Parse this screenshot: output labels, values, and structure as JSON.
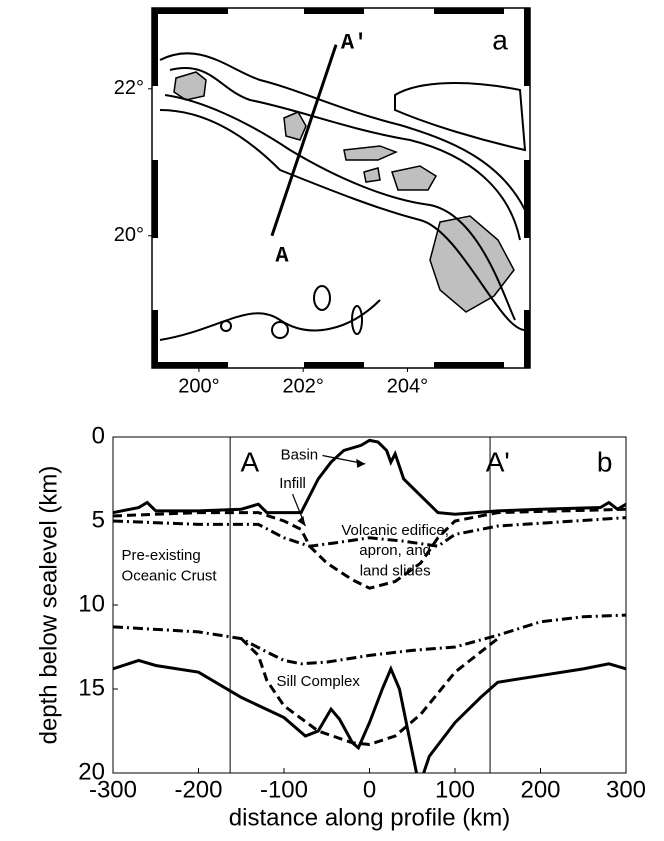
{
  "chart_data": [
    {
      "type": "map",
      "xlim": [
        199.1,
        206.35
      ],
      "ylim": [
        18.2,
        23.1
      ],
      "xticks": [
        {
          "value": 200,
          "label": "200°"
        },
        {
          "value": 202,
          "label": "202°"
        },
        {
          "value": 204,
          "label": "204°"
        }
      ],
      "yticks": [
        {
          "value": 20,
          "label": "20°"
        },
        {
          "value": 22,
          "label": "22°"
        }
      ],
      "profile": {
        "x": [
          201.4,
          202.63
        ],
        "y": [
          20.0,
          22.6
        ]
      },
      "annotations": [
        "A",
        "A'",
        "a"
      ]
    },
    {
      "type": "line",
      "xlabel": "distance along profile (km)",
      "ylabel": "depth below sealevel (km)",
      "xlim": [
        -300,
        300
      ],
      "ylim": [
        20,
        0
      ],
      "xticks": [
        -300,
        -200,
        -100,
        0,
        100,
        200,
        300
      ],
      "yticks": [
        0,
        5,
        10,
        15,
        20
      ],
      "vlines": [
        -163,
        141
      ],
      "annotations": [
        "A",
        "A'",
        "b",
        "Basin",
        "Infill",
        "Volcanic edifice,",
        "apron, and",
        "land slides",
        "Pre-existing",
        "Oceanic Crust",
        "Sill Complex"
      ],
      "series": [
        {
          "style": "solid",
          "color": "#000000",
          "x": [
            -300,
            -270,
            -260,
            -250,
            -200,
            -150,
            -130,
            -120,
            -80,
            -60,
            -45,
            -30,
            -10,
            0,
            10,
            20,
            25,
            30,
            40,
            60,
            70,
            80,
            100,
            150,
            200,
            270,
            280,
            290,
            300
          ],
          "values": [
            4.5,
            4.2,
            3.9,
            4.4,
            4.4,
            4.3,
            4.0,
            4.5,
            4.5,
            2.5,
            1.5,
            0.8,
            0.5,
            0.2,
            0.3,
            0.8,
            1.5,
            1.0,
            2.5,
            3.5,
            4.0,
            4.5,
            4.6,
            4.4,
            4.3,
            4.2,
            3.9,
            4.3,
            4.0
          ]
        },
        {
          "style": "dashed",
          "color": "#000000",
          "x": [
            -300,
            -200,
            -130,
            -100,
            -80,
            -70,
            -50,
            -20,
            0,
            30,
            60,
            80,
            100,
            150,
            300
          ],
          "values": [
            4.7,
            4.5,
            4.5,
            5.0,
            5.5,
            6.5,
            7.5,
            8.5,
            9.0,
            8.6,
            7.5,
            6.0,
            5.0,
            4.5,
            4.3
          ]
        },
        {
          "style": "dashdot",
          "color": "#000000",
          "x": [
            -300,
            -200,
            -130,
            -100,
            -70,
            -40,
            0,
            40,
            80,
            100,
            150,
            300
          ],
          "values": [
            5.0,
            5.2,
            5.2,
            6.0,
            6.5,
            6.3,
            6.0,
            6.2,
            6.5,
            5.8,
            5.3,
            4.8
          ]
        },
        {
          "style": "dashdot",
          "color": "#000000",
          "x": [
            -300,
            -200,
            -150,
            -120,
            -100,
            -80,
            -50,
            0,
            50,
            100,
            150,
            200,
            250,
            300
          ],
          "values": [
            11.3,
            11.6,
            12.0,
            12.8,
            13.3,
            13.5,
            13.4,
            13.0,
            12.7,
            12.5,
            11.8,
            11.0,
            10.7,
            10.6
          ]
        },
        {
          "style": "dashed",
          "color": "#000000",
          "x": [
            -150,
            -130,
            -120,
            -100,
            -60,
            -20,
            0,
            30,
            60,
            100,
            150
          ],
          "values": [
            12.0,
            13.0,
            14.5,
            16.0,
            17.5,
            18.2,
            18.3,
            17.8,
            16.5,
            14.0,
            12.0
          ]
        },
        {
          "style": "solid",
          "color": "#000000",
          "x": [
            -300,
            -270,
            -250,
            -200,
            -150,
            -100,
            -75,
            -60,
            -45,
            -35,
            -20,
            -13,
            0,
            15,
            25,
            35,
            45,
            55,
            60,
            70,
            100,
            130,
            150,
            200,
            250,
            280,
            300
          ],
          "values": [
            13.8,
            13.3,
            13.6,
            14.0,
            15.5,
            16.7,
            17.8,
            17.5,
            16.2,
            16.8,
            18.2,
            18.5,
            17.0,
            15.0,
            13.8,
            15.0,
            17.5,
            20.0,
            20.5,
            19.0,
            17.0,
            15.5,
            14.6,
            14.2,
            13.8,
            13.5,
            13.8
          ]
        }
      ]
    }
  ]
}
